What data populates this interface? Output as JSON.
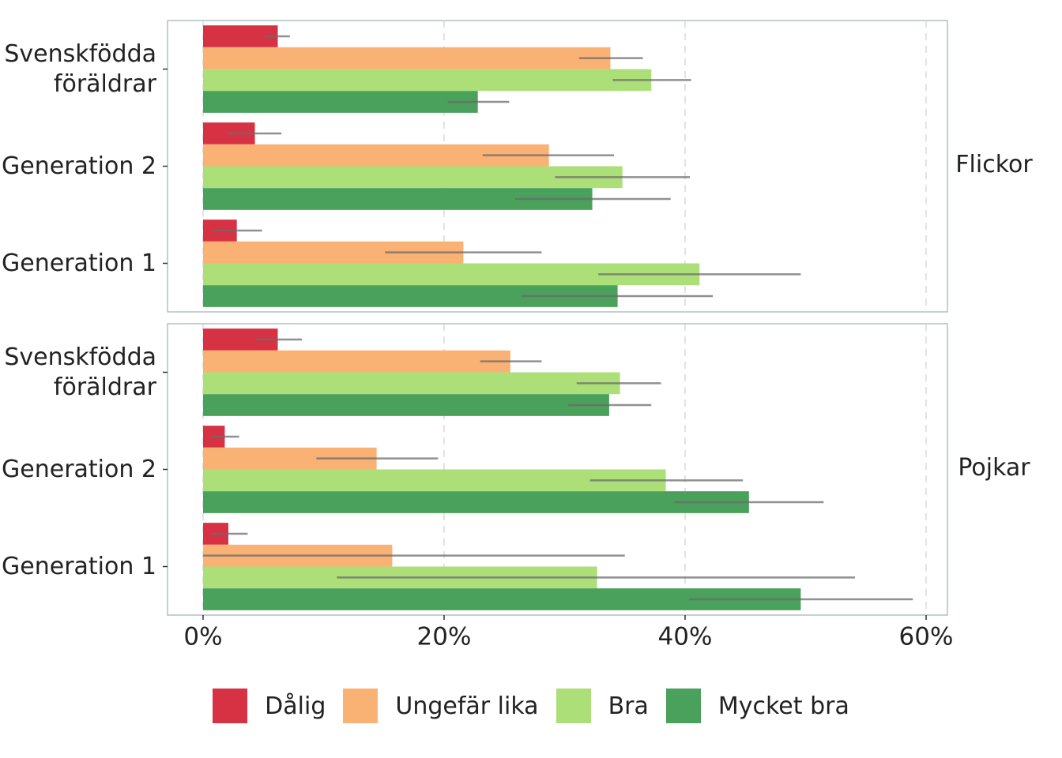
{
  "chart_data": {
    "type": "bar",
    "orientation": "horizontal",
    "facets": [
      "Flickor",
      "Pojkar"
    ],
    "categories": [
      "Svenskfödda föräldrar",
      "Generation 2",
      "Generation 1"
    ],
    "series": [
      {
        "name": "Dålig",
        "color": "#d63244",
        "values": [
          [
            6.2,
            4.3,
            2.8
          ],
          [
            6.2,
            1.8,
            2.1
          ]
        ],
        "low": [
          [
            5.1,
            2.0,
            0.8
          ],
          [
            4.3,
            0.7,
            0.7
          ]
        ],
        "high": [
          [
            7.2,
            6.5,
            4.9
          ],
          [
            8.2,
            3.0,
            3.7
          ]
        ]
      },
      {
        "name": "Ungefär lika",
        "color": "#fab174",
        "values": [
          [
            33.8,
            28.7,
            21.6
          ],
          [
            25.5,
            14.4,
            15.7
          ]
        ],
        "low": [
          [
            31.2,
            23.2,
            15.1
          ],
          [
            23.0,
            9.4,
            0.0
          ]
        ],
        "high": [
          [
            36.5,
            34.1,
            28.1
          ],
          [
            28.1,
            19.5,
            35.0
          ]
        ]
      },
      {
        "name": "Bra",
        "color": "#addf79",
        "values": [
          [
            37.2,
            34.8,
            41.2
          ],
          [
            34.6,
            38.4,
            32.7
          ]
        ],
        "low": [
          [
            34.0,
            29.2,
            32.8
          ],
          [
            31.0,
            32.1,
            11.1
          ]
        ],
        "high": [
          [
            40.5,
            40.4,
            49.6
          ],
          [
            38.0,
            44.8,
            54.1
          ]
        ]
      },
      {
        "name": "Mycket bra",
        "color": "#4aa15c",
        "values": [
          [
            22.8,
            32.3,
            34.4
          ],
          [
            33.7,
            45.3,
            49.6
          ]
        ],
        "low": [
          [
            20.3,
            25.9,
            26.4
          ],
          [
            30.3,
            39.1,
            40.3
          ]
        ],
        "high": [
          [
            25.4,
            38.8,
            42.3
          ],
          [
            37.2,
            51.5,
            58.9
          ]
        ]
      }
    ],
    "xlim": [
      -2.95,
      61.77
    ],
    "xticks": [
      {
        "value": 0,
        "label": "0%"
      },
      {
        "value": 20,
        "label": "20%"
      },
      {
        "value": 40,
        "label": "40%"
      },
      {
        "value": 60,
        "label": "60%"
      }
    ],
    "grid": true,
    "legend": "bottom"
  }
}
